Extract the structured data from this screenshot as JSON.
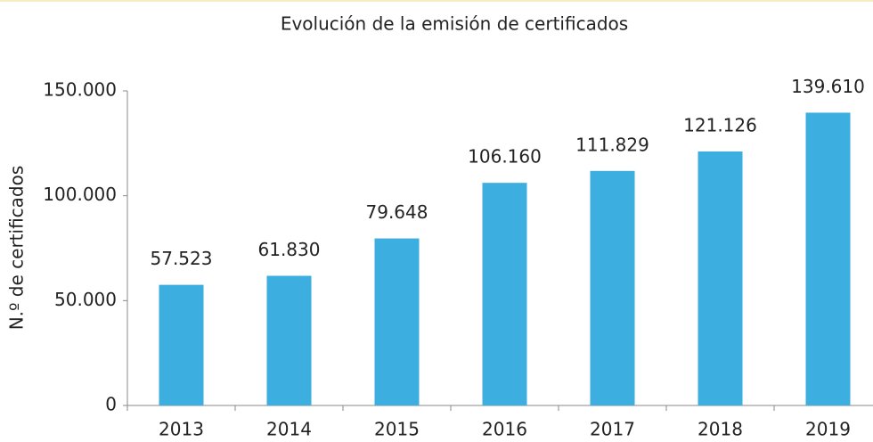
{
  "chart_data": {
    "type": "bar",
    "title": "Evolución de la emisión de certificados",
    "y_label": "N.º de certificados",
    "categories": [
      "2013",
      "2014",
      "2015",
      "2016",
      "2017",
      "2018",
      "2019"
    ],
    "values": [
      57523,
      61830,
      79648,
      106160,
      111829,
      121126,
      139610
    ],
    "value_labels": [
      "57.523",
      "61.830",
      "79.648",
      "106.160",
      "111.829",
      "121.126",
      "139.610"
    ],
    "color": "#3daee0",
    "ylim": [
      0,
      150000
    ],
    "yticks": [
      0,
      {
        "value": 50000,
        "label": "50.000"
      },
      {
        "value": 100000,
        "label": "100.000"
      },
      {
        "value": 150000,
        "label": "150.000"
      }
    ],
    "grid": false
  }
}
